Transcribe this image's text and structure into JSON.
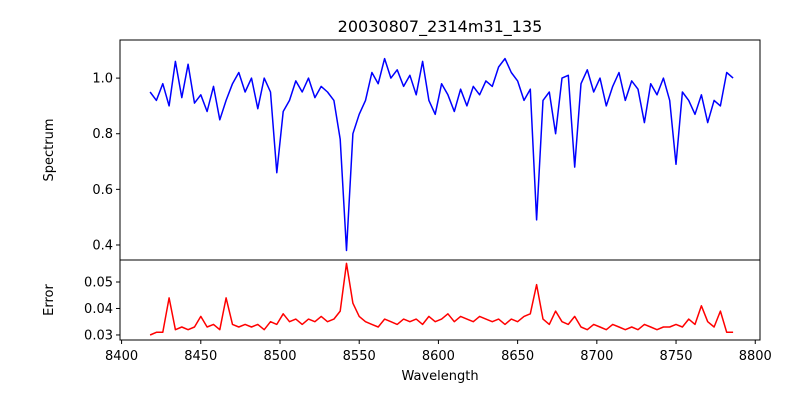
{
  "chart_data": {
    "type": "line",
    "title": "20030807_2314m31_135",
    "xlabel": "Wavelength",
    "xlim": [
      8399,
      8803
    ],
    "xticks": [
      8400,
      8450,
      8500,
      8550,
      8600,
      8650,
      8700,
      8750,
      8800
    ],
    "x": [
      8418,
      8422,
      8426,
      8430,
      8434,
      8438,
      8442,
      8446,
      8450,
      8454,
      8458,
      8462,
      8466,
      8470,
      8474,
      8478,
      8482,
      8486,
      8490,
      8494,
      8498,
      8502,
      8506,
      8510,
      8514,
      8518,
      8522,
      8526,
      8530,
      8534,
      8538,
      8542,
      8546,
      8550,
      8554,
      8558,
      8562,
      8566,
      8570,
      8574,
      8578,
      8582,
      8586,
      8590,
      8594,
      8598,
      8602,
      8606,
      8610,
      8614,
      8618,
      8622,
      8626,
      8630,
      8634,
      8638,
      8642,
      8646,
      8650,
      8654,
      8658,
      8662,
      8666,
      8670,
      8674,
      8678,
      8682,
      8686,
      8690,
      8694,
      8698,
      8702,
      8706,
      8710,
      8714,
      8718,
      8722,
      8726,
      8730,
      8734,
      8738,
      8742,
      8746,
      8750,
      8754,
      8758,
      8762,
      8766,
      8770,
      8774,
      8778,
      8782,
      8786
    ],
    "panels": [
      {
        "name": "spectrum",
        "ylabel": "Spectrum",
        "ylim": [
          0.346,
          1.137
        ],
        "yticks": [
          "0.4",
          "0.6",
          "0.8",
          "1.0"
        ],
        "color": "#0000ff",
        "y": [
          0.95,
          0.92,
          0.98,
          0.9,
          1.06,
          0.93,
          1.05,
          0.91,
          0.94,
          0.88,
          0.97,
          0.85,
          0.92,
          0.98,
          1.02,
          0.95,
          1.0,
          0.89,
          1.0,
          0.95,
          0.66,
          0.88,
          0.92,
          0.99,
          0.95,
          1.0,
          0.93,
          0.97,
          0.95,
          0.92,
          0.78,
          0.38,
          0.8,
          0.87,
          0.92,
          1.02,
          0.98,
          1.07,
          1.0,
          1.03,
          0.97,
          1.01,
          0.94,
          1.06,
          0.92,
          0.87,
          0.98,
          0.94,
          0.88,
          0.96,
          0.9,
          0.97,
          0.94,
          0.99,
          0.97,
          1.04,
          1.07,
          1.02,
          0.99,
          0.92,
          0.96,
          0.49,
          0.92,
          0.95,
          0.8,
          1.0,
          1.01,
          0.68,
          0.98,
          1.03,
          0.95,
          1.0,
          0.9,
          0.97,
          1.02,
          0.92,
          0.99,
          0.96,
          0.84,
          0.98,
          0.94,
          1.0,
          0.92,
          0.69,
          0.95,
          0.92,
          0.87,
          0.94,
          0.84,
          0.92,
          0.9,
          1.02,
          1.0
        ]
      },
      {
        "name": "error",
        "ylabel": "Error",
        "ylim": [
          0.0281,
          0.0583
        ],
        "yticks": [
          "0.03",
          "0.04",
          "0.05"
        ],
        "color": "#ff0000",
        "y": [
          0.03,
          0.031,
          0.031,
          0.044,
          0.032,
          0.033,
          0.032,
          0.033,
          0.037,
          0.033,
          0.034,
          0.032,
          0.044,
          0.034,
          0.033,
          0.034,
          0.033,
          0.034,
          0.032,
          0.035,
          0.034,
          0.038,
          0.035,
          0.036,
          0.034,
          0.036,
          0.035,
          0.037,
          0.035,
          0.036,
          0.039,
          0.057,
          0.042,
          0.037,
          0.035,
          0.034,
          0.033,
          0.036,
          0.035,
          0.034,
          0.036,
          0.035,
          0.036,
          0.034,
          0.037,
          0.035,
          0.036,
          0.038,
          0.035,
          0.037,
          0.036,
          0.035,
          0.037,
          0.036,
          0.035,
          0.036,
          0.034,
          0.036,
          0.035,
          0.037,
          0.038,
          0.049,
          0.036,
          0.034,
          0.039,
          0.035,
          0.034,
          0.037,
          0.033,
          0.032,
          0.034,
          0.033,
          0.032,
          0.034,
          0.033,
          0.032,
          0.033,
          0.032,
          0.034,
          0.033,
          0.032,
          0.033,
          0.033,
          0.034,
          0.033,
          0.036,
          0.034,
          0.041,
          0.035,
          0.033,
          0.039,
          0.031,
          0.031
        ]
      }
    ]
  }
}
